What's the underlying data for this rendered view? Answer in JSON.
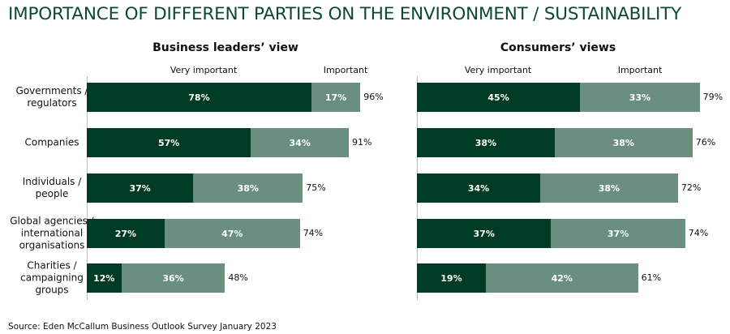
{
  "title": "IMPORTANCE OF DIFFERENT PARTIES ON THE ENVIRONMENT / SUSTAINABILITY",
  "source": "Source: Eden McCallum Business Outlook Survey January 2023",
  "colors": {
    "very_important": "#003b24",
    "important": "#6b8f7e",
    "title": "#0d4a2c"
  },
  "categories": [
    "Governments /\nregulators",
    "Companies",
    "Individuals /\npeople",
    "Global agencies /\ninternational\norganisations",
    "Charities /\ncampaigning\ngroups"
  ],
  "chart_data": [
    {
      "type": "bar",
      "orientation": "horizontal",
      "stacked": true,
      "title": "Business leaders’ view",
      "legend_labels": [
        "Very important",
        "Important"
      ],
      "categories": [
        "Governments / regulators",
        "Companies",
        "Individuals / people",
        "Global agencies / international organisations",
        "Charities / campaigning groups"
      ],
      "series": [
        {
          "name": "Very important",
          "values": [
            78,
            57,
            37,
            27,
            12
          ],
          "labels": [
            "78%",
            "57%",
            "37%",
            "27%",
            "12%"
          ]
        },
        {
          "name": "Important",
          "values": [
            17,
            34,
            38,
            47,
            36
          ],
          "labels": [
            "17%",
            "34%",
            "38%",
            "47%",
            "36%"
          ]
        }
      ],
      "totals": [
        "96%",
        "91%",
        "75%",
        "74%",
        "48%"
      ]
    },
    {
      "type": "bar",
      "orientation": "horizontal",
      "stacked": true,
      "title": "Consumers’ views",
      "legend_labels": [
        "Very important",
        "Important"
      ],
      "categories": [
        "Governments / regulators",
        "Companies",
        "Individuals / people",
        "Global agencies / international organisations",
        "Charities / campaigning groups"
      ],
      "series": [
        {
          "name": "Very important",
          "values": [
            45,
            38,
            34,
            37,
            19
          ],
          "labels": [
            "45%",
            "38%",
            "34%",
            "37%",
            "19%"
          ]
        },
        {
          "name": "Important",
          "values": [
            33,
            38,
            38,
            37,
            42
          ],
          "labels": [
            "33%",
            "38%",
            "38%",
            "37%",
            "42%"
          ]
        }
      ],
      "totals": [
        "79%",
        "76%",
        "72%",
        "74%",
        "61%"
      ]
    }
  ]
}
